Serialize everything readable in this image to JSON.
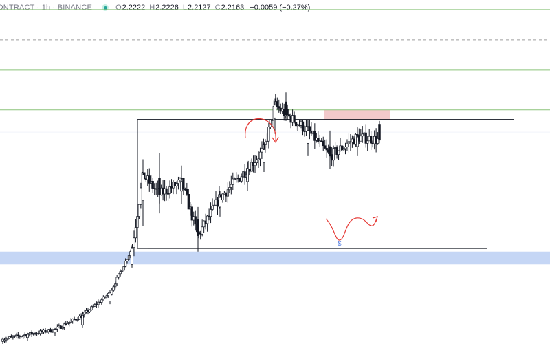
{
  "header": {
    "title": "ONTRACT · 1h · BINANCE",
    "o_label": "O",
    "o_value": "2.2222",
    "h_label": "H",
    "h_value": "2.2226",
    "l_label": "L",
    "l_value": "2.2127",
    "c_label": "C",
    "c_value": "2.2163",
    "change": "−0.0059 (−0.27%)"
  },
  "colors": {
    "candle": "#131722",
    "level_line": "#8bc47a",
    "dashed_line": "#9e9e9e",
    "support_zone": "#c5d6f5",
    "resistance_zone": "#f2c9cb",
    "annotation": "#e53935",
    "range_box": "#131722",
    "dollar_marker": "#4a78e0"
  },
  "chart_data": {
    "type": "candlestick",
    "title": "",
    "timeframe": "1h",
    "exchange": "BINANCE",
    "y_range": [
      1.35,
      2.43
    ],
    "x_range": [
      0,
      200
    ],
    "price_levels": [
      {
        "kind": "horizontal-line",
        "style": "solid",
        "price": 2.4
      },
      {
        "kind": "horizontal-line",
        "style": "dashed",
        "price": 2.305
      },
      {
        "kind": "horizontal-line",
        "style": "solid",
        "price": 2.21
      },
      {
        "kind": "horizontal-line",
        "style": "solid",
        "price": 2.085
      }
    ],
    "zones": [
      {
        "kind": "support-zone",
        "price_from": 1.6,
        "price_to": 1.64
      },
      {
        "kind": "resistance-zone",
        "x_from": 118,
        "x_to": 142,
        "price_from": 2.055,
        "price_to": 2.085
      }
    ],
    "range_box": {
      "x_from": 50,
      "x_to": 149,
      "price_high": 2.055,
      "price_low": 1.65,
      "label": "$"
    },
    "candles_ohlc_approx": [
      {
        "x": 1,
        "o": 1.36,
        "h": 1.37,
        "l": 1.35,
        "c": 1.365
      },
      {
        "x": 10,
        "o": 1.37,
        "h": 1.385,
        "l": 1.36,
        "c": 1.38
      },
      {
        "x": 20,
        "o": 1.385,
        "h": 1.4,
        "l": 1.375,
        "c": 1.395
      },
      {
        "x": 30,
        "o": 1.41,
        "h": 1.45,
        "l": 1.4,
        "c": 1.44
      },
      {
        "x": 40,
        "o": 1.485,
        "h": 1.52,
        "l": 1.475,
        "c": 1.51
      },
      {
        "x": 48,
        "o": 1.6,
        "h": 1.66,
        "l": 1.59,
        "c": 1.65
      },
      {
        "x": 52,
        "o": 1.8,
        "h": 1.93,
        "l": 1.72,
        "c": 1.88
      },
      {
        "x": 58,
        "o": 1.87,
        "h": 1.95,
        "l": 1.76,
        "c": 1.82
      },
      {
        "x": 66,
        "o": 1.83,
        "h": 1.91,
        "l": 1.79,
        "c": 1.86
      },
      {
        "x": 72,
        "o": 1.74,
        "h": 1.78,
        "l": 1.64,
        "c": 1.69
      },
      {
        "x": 80,
        "o": 1.78,
        "h": 1.83,
        "l": 1.75,
        "c": 1.81
      },
      {
        "x": 90,
        "o": 1.86,
        "h": 1.92,
        "l": 1.83,
        "c": 1.9
      },
      {
        "x": 96,
        "o": 1.92,
        "h": 1.98,
        "l": 1.89,
        "c": 1.96
      },
      {
        "x": 100,
        "o": 2.06,
        "h": 2.12,
        "l": 2.01,
        "c": 2.1
      },
      {
        "x": 104,
        "o": 2.11,
        "h": 2.14,
        "l": 2.05,
        "c": 2.07
      },
      {
        "x": 112,
        "o": 1.98,
        "h": 2.05,
        "l": 1.94,
        "c": 2.02
      },
      {
        "x": 120,
        "o": 1.97,
        "h": 2.02,
        "l": 1.9,
        "c": 1.94
      },
      {
        "x": 130,
        "o": 1.97,
        "h": 2.03,
        "l": 1.94,
        "c": 2.0
      },
      {
        "x": 138,
        "o": 2.04,
        "h": 2.05,
        "l": 1.98,
        "c": 1.99
      }
    ],
    "annotations": [
      {
        "kind": "curved-arrow",
        "description": "arc over the local top pointing down"
      },
      {
        "kind": "curved-arrow",
        "description": "projected dip into support zone then bounce up"
      }
    ]
  }
}
